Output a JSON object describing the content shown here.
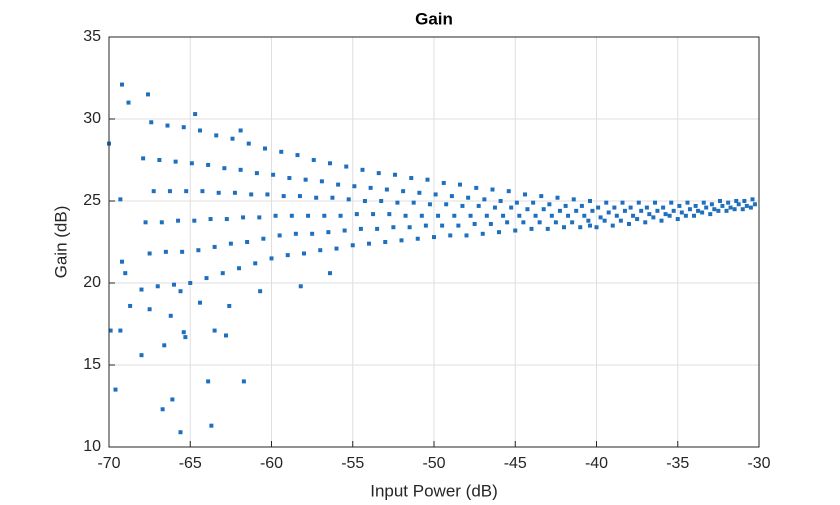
{
  "chart_data": {
    "type": "scatter",
    "title": "Gain",
    "xlabel": "Input Power (dB)",
    "ylabel": "Gain (dB)",
    "color": "#1f6fbf",
    "grid": true,
    "xlim": [
      -70,
      -30
    ],
    "ylim": [
      10,
      35
    ],
    "xticks": [
      -70,
      -65,
      -60,
      -55,
      -50,
      -45,
      -40,
      -35,
      -30
    ],
    "yticks": [
      10,
      15,
      20,
      25,
      30,
      35
    ],
    "x": [
      -69.2,
      -67.6,
      -68.8,
      -70,
      -69.3,
      -69.2,
      -69.9,
      -69.3,
      -69.6,
      -68,
      -66.6,
      -65.3,
      -65.4,
      -66.7,
      -66.1,
      -65.6,
      -63.9,
      -63.7,
      -61.7,
      -64.7,
      -68.7,
      -69,
      -67.5,
      -66.2,
      -65.6,
      -64.4,
      -63.5,
      -62.8,
      -62.6,
      -60.7,
      -58.2,
      -56.4,
      -40.4,
      -61.9,
      -68,
      -67.5,
      -67.75,
      -67.25,
      -67.9,
      -67.4,
      -67,
      -66.5,
      -66.75,
      -66.25,
      -66.9,
      -66.4,
      -66,
      -65.5,
      -65.75,
      -65.25,
      -65.9,
      -65.4,
      -65,
      -64.5,
      -64.75,
      -64.25,
      -64.9,
      -64.4,
      -64,
      -63.5,
      -63.75,
      -63.25,
      -63.9,
      -63.4,
      -63,
      -62.5,
      -62.75,
      -62.25,
      -62.9,
      -62.4,
      -62,
      -61.5,
      -61.75,
      -61.25,
      -61.9,
      -61.4,
      -61,
      -60.5,
      -60.75,
      -60.25,
      -60.9,
      -60.4,
      -60,
      -59.5,
      -59.75,
      -59.25,
      -59.9,
      -59.4,
      -59,
      -58.5,
      -58.75,
      -58.25,
      -58.9,
      -58.4,
      -58,
      -57.5,
      -57.75,
      -57.25,
      -57.9,
      -57.4,
      -57,
      -56.5,
      -56.75,
      -56.25,
      -56.9,
      -56.4,
      -56,
      -55.5,
      -55.75,
      -55.25,
      -55.9,
      -55.4,
      -55,
      -54.5,
      -54.75,
      -54.25,
      -54.9,
      -54.4,
      -54,
      -53.5,
      -53.75,
      -53.25,
      -53.9,
      -53.4,
      -53,
      -52.5,
      -52.75,
      -52.25,
      -52.9,
      -52.4,
      -52,
      -51.5,
      -51.75,
      -51.25,
      -51.9,
      -51.4,
      -51,
      -50.5,
      -50.75,
      -50.25,
      -50.9,
      -50.4,
      -50,
      -49.5,
      -49.75,
      -49.25,
      -49.9,
      -49.4,
      -49,
      -48.5,
      -48.75,
      -48.25,
      -48.9,
      -48.4,
      -48,
      -47.5,
      -47.75,
      -47.25,
      -47.9,
      -47.4,
      -47,
      -46.5,
      -46.75,
      -46.25,
      -46.9,
      -46.4,
      -46,
      -45.5,
      -45.75,
      -45.25,
      -45.9,
      -45.4,
      -45,
      -44.5,
      -44.75,
      -44.25,
      -44.9,
      -44.4,
      -44,
      -43.5,
      -43.75,
      -43.25,
      -43.9,
      -43.4,
      -43,
      -42.5,
      -42.75,
      -42.25,
      -42.9,
      -42.4,
      -42,
      -41.5,
      -41.75,
      -41.25,
      -41.9,
      -41.4,
      -41,
      -40.5,
      -40.75,
      -40.25,
      -40.9,
      -40.4,
      -40,
      -39.5,
      -39.75,
      -39.25,
      -39.9,
      -39.4,
      -39,
      -38.5,
      -38.75,
      -38.25,
      -38.9,
      -38.4,
      -38,
      -37.5,
      -37.75,
      -37.25,
      -37.9,
      -37.4,
      -37,
      -36.5,
      -36.75,
      -36.25,
      -36.9,
      -36.4,
      -36,
      -35.5,
      -35.75,
      -35.25,
      -35.9,
      -35.4,
      -35,
      -34.5,
      -34.75,
      -34.25,
      -34.9,
      -34.4,
      -34,
      -33.5,
      -33.75,
      -33.25,
      -33.9,
      -33.4,
      -33,
      -32.5,
      -32.75,
      -32.25,
      -32.9,
      -32.4,
      -32,
      -31.5,
      -31.75,
      -31.25,
      -31.9,
      -31.4,
      -31,
      -30.5,
      -30.75,
      -30.25,
      -30.9,
      -30.4
    ],
    "values": [
      32.1,
      31.5,
      31.0,
      28.5,
      25.1,
      21.3,
      17.1,
      17.1,
      13.5,
      15.6,
      16.2,
      16.7,
      17.0,
      12.3,
      12.9,
      10.9,
      14.0,
      11.3,
      14.0,
      30.3,
      18.6,
      20.6,
      18.4,
      18.0,
      19.5,
      18.8,
      17.1,
      16.8,
      18.6,
      19.5,
      19.8,
      20.6,
      23.5,
      29.3,
      19.6,
      21.8,
      23.7,
      25.6,
      27.6,
      29.8,
      19.8,
      21.9,
      23.7,
      25.6,
      27.5,
      29.6,
      19.9,
      21.9,
      23.8,
      25.6,
      27.4,
      29.5,
      20.0,
      22.0,
      23.8,
      25.6,
      27.3,
      29.3,
      20.3,
      22.2,
      23.9,
      25.5,
      27.2,
      29.0,
      20.6,
      22.4,
      23.9,
      25.5,
      27.0,
      28.8,
      20.9,
      22.5,
      24.0,
      25.4,
      26.9,
      28.5,
      21.2,
      22.7,
      24.0,
      25.4,
      26.7,
      28.2,
      21.5,
      22.9,
      24.1,
      25.3,
      26.6,
      28.0,
      21.7,
      23.0,
      24.1,
      25.3,
      26.4,
      27.8,
      21.8,
      23.0,
      24.1,
      25.2,
      26.3,
      27.5,
      22.0,
      23.1,
      24.1,
      25.2,
      26.2,
      27.3,
      22.1,
      23.2,
      24.1,
      25.1,
      26.0,
      27.1,
      22.3,
      23.3,
      24.2,
      25.0,
      25.9,
      26.9,
      22.4,
      23.3,
      24.2,
      25.0,
      25.8,
      26.7,
      22.5,
      23.4,
      24.2,
      24.9,
      25.7,
      26.6,
      22.6,
      23.4,
      24.1,
      24.9,
      25.6,
      26.4,
      22.7,
      23.5,
      24.1,
      24.8,
      25.5,
      26.3,
      22.8,
      23.5,
      24.1,
      24.8,
      25.4,
      26.1,
      22.9,
      23.5,
      24.1,
      24.7,
      25.3,
      26.0,
      22.9,
      23.6,
      24.1,
      24.7,
      25.2,
      25.8,
      23.0,
      23.6,
      24.1,
      24.6,
      25.1,
      25.7,
      23.1,
      23.7,
      24.1,
      24.6,
      25.0,
      25.6,
      23.2,
      23.7,
      24.1,
      24.5,
      24.9,
      25.4,
      23.3,
      23.7,
      24.1,
      24.5,
      24.9,
      25.3,
      23.3,
      23.7,
      24.1,
      24.4,
      24.8,
      25.2,
      23.4,
      23.7,
      24.1,
      24.4,
      24.7,
      25.1,
      23.4,
      23.8,
      24.1,
      24.4,
      24.7,
      25.0,
      23.4,
      23.8,
      24.0,
      24.3,
      24.6,
      24.9,
      23.5,
      23.8,
      24.1,
      24.4,
      24.6,
      24.9,
      23.6,
      23.9,
      24.1,
      24.4,
      24.6,
      24.9,
      23.7,
      24.0,
      24.2,
      24.4,
      24.6,
      24.9,
      23.8,
      24.1,
      24.2,
      24.4,
      24.6,
      24.9,
      23.9,
      24.1,
      24.3,
      24.5,
      24.7,
      24.9,
      24.1,
      24.3,
      24.4,
      24.6,
      24.7,
      24.9,
      24.2,
      24.4,
      24.5,
      24.7,
      24.8,
      25.0,
      24.4,
      24.5,
      24.6,
      24.8,
      24.9,
      25.0,
      24.5,
      24.6,
      24.7,
      24.8,
      25.0,
      25.1
    ]
  }
}
